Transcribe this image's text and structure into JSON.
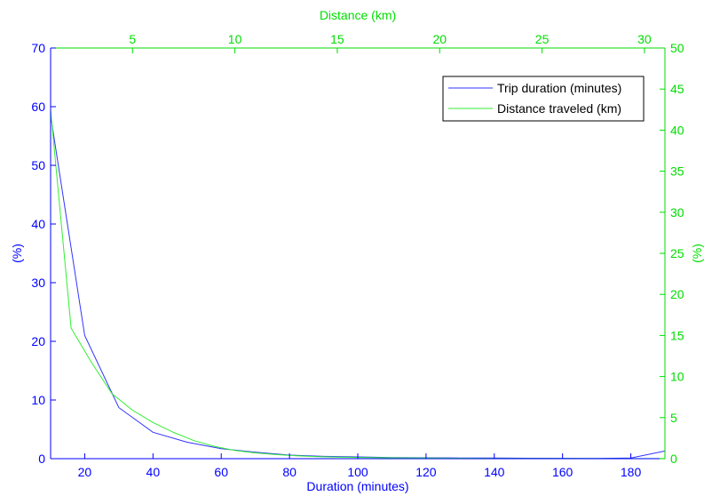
{
  "chart_data": {
    "type": "line",
    "title": "",
    "bottom_axis": {
      "label": "Duration (minutes)",
      "range": [
        10,
        190
      ],
      "ticks": [
        20,
        40,
        60,
        80,
        100,
        120,
        140,
        160,
        180
      ],
      "color": "#0000ff"
    },
    "top_axis": {
      "label": "Distance (km)",
      "range": [
        1,
        31
      ],
      "ticks": [
        5,
        10,
        15,
        20,
        25,
        30
      ],
      "color": "#00dd00"
    },
    "left_axis": {
      "label": "(%)",
      "range": [
        0,
        70
      ],
      "ticks": [
        0,
        10,
        20,
        30,
        40,
        50,
        60,
        70
      ],
      "color": "#0000ff"
    },
    "right_axis": {
      "label": "(%)",
      "range": [
        0,
        50
      ],
      "ticks": [
        0,
        5,
        10,
        15,
        20,
        25,
        30,
        35,
        40,
        45,
        50
      ],
      "color": "#00dd00"
    },
    "legend_position": "top-right",
    "grid": false,
    "series": [
      {
        "name": "Trip duration (minutes)",
        "color": "#3333ff",
        "axes": "bottom-left",
        "x": [
          10,
          20,
          30,
          40,
          50,
          60,
          70,
          80,
          90,
          100,
          110,
          120,
          130,
          140,
          150,
          160,
          170,
          180,
          190
        ],
        "y": [
          58.5,
          21,
          8.7,
          4.5,
          2.8,
          1.7,
          1.1,
          0.6,
          0.4,
          0.3,
          0.2,
          0.15,
          0.12,
          0.1,
          0.08,
          0.06,
          0.05,
          0.1,
          1.3
        ]
      },
      {
        "name": "Distance traveled (km)",
        "color": "#33ee33",
        "axes": "top-right",
        "x": [
          1,
          2,
          3,
          4,
          5,
          6,
          7,
          8,
          9,
          10,
          11,
          12,
          13,
          14,
          15,
          16,
          17,
          18,
          19,
          20,
          21,
          22,
          23,
          24,
          25,
          26,
          27,
          28,
          29,
          30,
          31
        ],
        "y": [
          42.5,
          15.9,
          11.7,
          7.9,
          5.9,
          4.4,
          3.2,
          2.2,
          1.5,
          1.0,
          0.7,
          0.5,
          0.35,
          0.25,
          0.2,
          0.15,
          0.12,
          0.1,
          0.08,
          0.06,
          0.05,
          0.04,
          0.03,
          0.03,
          0.02,
          0.02,
          0.02,
          0.01,
          0.01,
          0.01,
          0.01
        ]
      }
    ]
  }
}
